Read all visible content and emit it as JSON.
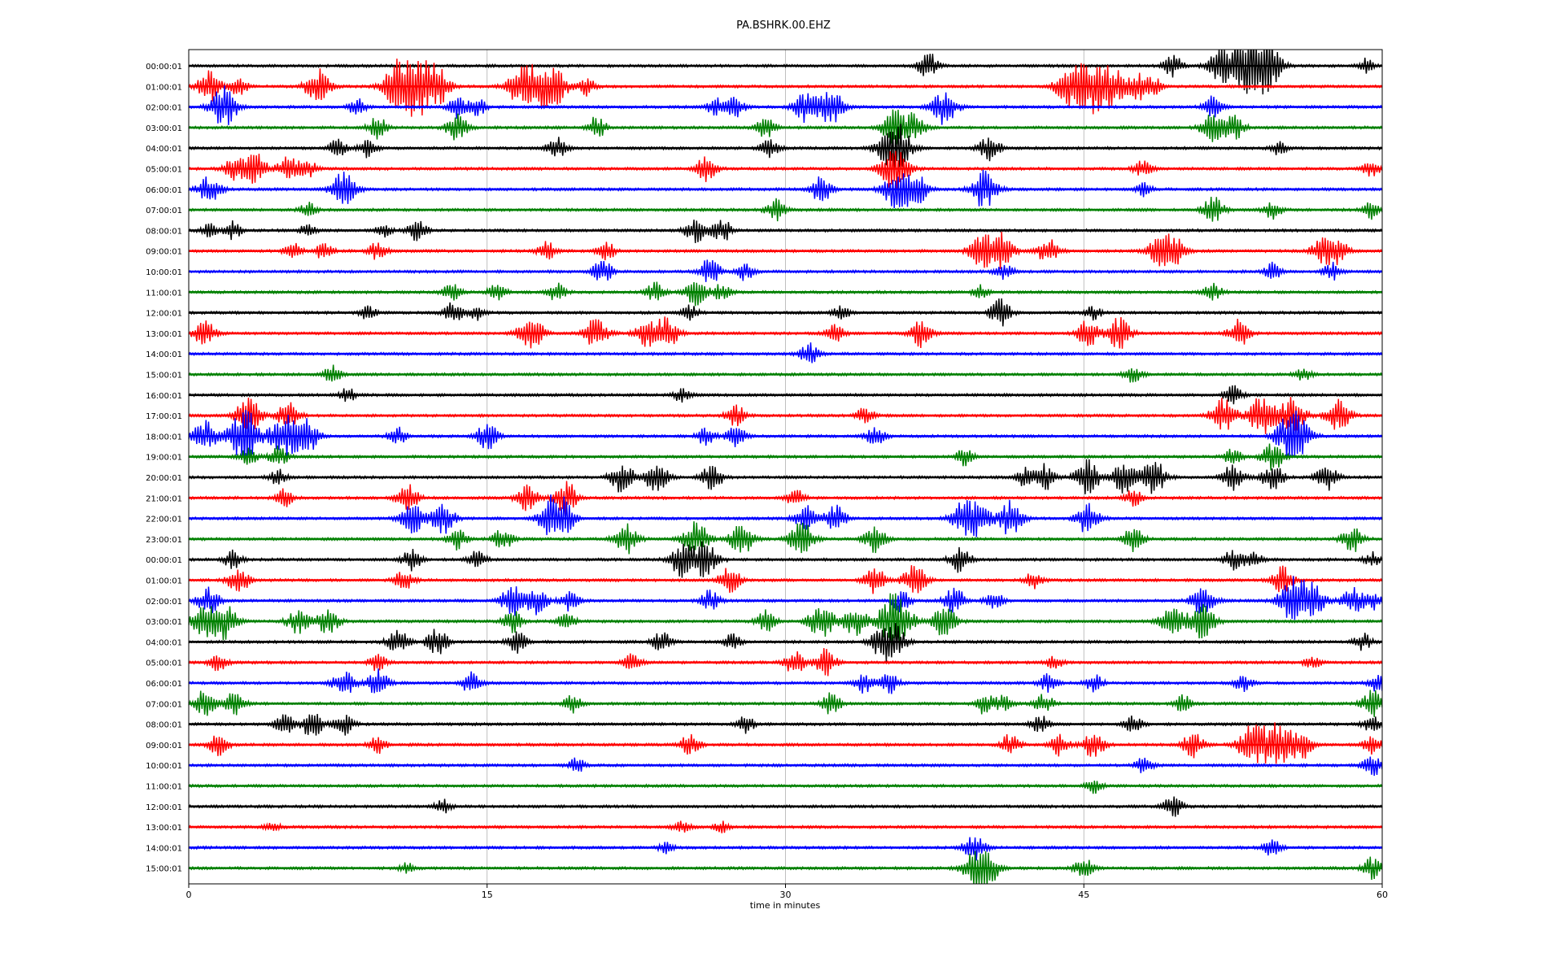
{
  "chart_data": {
    "type": "line",
    "title": "PA.BSHRK.00.EHZ",
    "xlabel": "time in minutes",
    "ylabel": "",
    "xlim": [
      0,
      60
    ],
    "xticks": [
      "0",
      "15",
      "30",
      "45",
      "60"
    ],
    "grid": "vertical",
    "trace_colors": [
      "#000000",
      "#ff0000",
      "#0000ff",
      "#008000"
    ],
    "row_labels": [
      "00:00:01",
      "01:00:01",
      "02:00:01",
      "03:00:01",
      "04:00:01",
      "05:00:01",
      "06:00:01",
      "07:00:01",
      "08:00:01",
      "09:00:01",
      "10:00:01",
      "11:00:01",
      "12:00:01",
      "13:00:01",
      "14:00:01",
      "15:00:01",
      "16:00:01",
      "17:00:01",
      "18:00:01",
      "19:00:01",
      "20:00:01",
      "21:00:01",
      "22:00:01",
      "23:00:01",
      "00:00:01",
      "01:00:01",
      "02:00:01",
      "03:00:01",
      "04:00:01",
      "05:00:01",
      "06:00:01",
      "07:00:01",
      "08:00:01",
      "09:00:01",
      "10:00:01",
      "11:00:01",
      "12:00:01",
      "13:00:01",
      "14:00:01",
      "15:00:01"
    ],
    "events": [
      [
        [
          37.2,
          1.5
        ],
        [
          49.5,
          1.2
        ],
        [
          51.8,
          1.8
        ],
        [
          52.8,
          2.0
        ],
        [
          53.6,
          2.2
        ],
        [
          54.2,
          2.5
        ],
        [
          59.2,
          0.8
        ]
      ],
      [
        [
          1.0,
          1.8
        ],
        [
          2.5,
          1.0
        ],
        [
          6.5,
          2.0
        ],
        [
          10.5,
          2.5
        ],
        [
          11.5,
          3.0
        ],
        [
          12.5,
          2.0
        ],
        [
          16.5,
          1.8
        ],
        [
          17.5,
          2.5
        ],
        [
          18.5,
          1.8
        ],
        [
          20.0,
          1.0
        ],
        [
          44.0,
          1.5
        ],
        [
          44.8,
          2.0
        ],
        [
          45.5,
          2.5
        ],
        [
          46.5,
          2.0
        ],
        [
          47.8,
          1.5
        ],
        [
          48.5,
          1.0
        ]
      ],
      [
        [
          1.5,
          1.5
        ],
        [
          2.0,
          1.5
        ],
        [
          8.5,
          1.0
        ],
        [
          13.5,
          1.2
        ],
        [
          14.5,
          1.0
        ],
        [
          26.5,
          1.0
        ],
        [
          27.5,
          1.2
        ],
        [
          31.0,
          1.8
        ],
        [
          32.3,
          2.0
        ],
        [
          38.0,
          2.0
        ],
        [
          51.5,
          1.2
        ]
      ],
      [
        [
          9.5,
          1.2
        ],
        [
          13.5,
          1.5
        ],
        [
          20.5,
          1.2
        ],
        [
          29.0,
          1.2
        ],
        [
          35.5,
          2.0
        ],
        [
          36.5,
          1.5
        ],
        [
          51.5,
          1.8
        ],
        [
          52.5,
          1.5
        ]
      ],
      [
        [
          7.5,
          1.0
        ],
        [
          9.0,
          1.0
        ],
        [
          18.5,
          1.2
        ],
        [
          29.2,
          1.2
        ],
        [
          35.5,
          3.0
        ],
        [
          40.3,
          1.5
        ],
        [
          54.8,
          0.8
        ]
      ],
      [
        [
          2.2,
          1.2
        ],
        [
          3.0,
          1.3
        ],
        [
          3.5,
          1.2
        ],
        [
          5.0,
          1.5
        ],
        [
          6.0,
          1.0
        ],
        [
          26.0,
          1.5
        ],
        [
          35.5,
          2.5
        ],
        [
          48.0,
          1.0
        ],
        [
          59.5,
          1.0
        ]
      ],
      [
        [
          0.8,
          1.0
        ],
        [
          1.3,
          1.0
        ],
        [
          7.8,
          2.0
        ],
        [
          31.8,
          1.5
        ],
        [
          35.5,
          2.0
        ],
        [
          36.5,
          2.0
        ],
        [
          40.0,
          2.2
        ],
        [
          48.0,
          0.8
        ]
      ],
      [
        [
          6.0,
          0.8
        ],
        [
          29.5,
          1.2
        ],
        [
          51.5,
          1.5
        ],
        [
          54.5,
          1.0
        ],
        [
          59.5,
          1.0
        ]
      ],
      [
        [
          1.0,
          0.8
        ],
        [
          2.2,
          1.0
        ],
        [
          6.0,
          0.8
        ],
        [
          9.8,
          0.8
        ],
        [
          11.5,
          1.2
        ],
        [
          25.5,
          1.5
        ],
        [
          26.8,
          1.3
        ]
      ],
      [
        [
          5.2,
          1.0
        ],
        [
          6.8,
          1.0
        ],
        [
          9.5,
          1.0
        ],
        [
          18.0,
          1.0
        ],
        [
          21.0,
          1.0
        ],
        [
          39.8,
          1.8
        ],
        [
          40.8,
          2.0
        ],
        [
          43.2,
          1.5
        ],
        [
          48.7,
          1.5
        ],
        [
          49.5,
          1.8
        ],
        [
          57.0,
          1.5
        ],
        [
          57.8,
          1.3
        ]
      ],
      [
        [
          20.8,
          1.3
        ],
        [
          26.2,
          1.5
        ],
        [
          28.0,
          1.0
        ],
        [
          41.0,
          1.0
        ],
        [
          54.5,
          1.0
        ],
        [
          57.5,
          1.0
        ]
      ],
      [
        [
          13.2,
          1.0
        ],
        [
          15.5,
          1.0
        ],
        [
          18.5,
          1.0
        ],
        [
          23.5,
          1.2
        ],
        [
          25.5,
          1.5
        ],
        [
          26.8,
          1.0
        ],
        [
          39.8,
          0.8
        ],
        [
          51.5,
          1.0
        ]
      ],
      [
        [
          9.0,
          0.8
        ],
        [
          13.3,
          1.2
        ],
        [
          14.5,
          0.8
        ],
        [
          25.2,
          0.8
        ],
        [
          32.8,
          0.8
        ],
        [
          40.8,
          1.5
        ],
        [
          45.5,
          0.8
        ]
      ],
      [
        [
          0.8,
          1.5
        ],
        [
          17.0,
          1.5
        ],
        [
          17.5,
          1.0
        ],
        [
          20.5,
          1.8
        ],
        [
          23.0,
          1.5
        ],
        [
          24.0,
          1.8
        ],
        [
          32.5,
          1.0
        ],
        [
          36.8,
          1.5
        ],
        [
          45.2,
          1.5
        ],
        [
          46.8,
          1.8
        ],
        [
          52.8,
          1.5
        ]
      ],
      [
        [
          31.2,
          1.2
        ]
      ],
      [
        [
          7.2,
          1.0
        ],
        [
          47.5,
          1.0
        ],
        [
          56.0,
          0.8
        ]
      ],
      [
        [
          8.0,
          0.8
        ],
        [
          24.8,
          0.8
        ],
        [
          52.5,
          1.0
        ]
      ],
      [
        [
          3.0,
          2.0
        ],
        [
          5.0,
          1.5
        ],
        [
          27.5,
          1.2
        ],
        [
          34.0,
          1.0
        ],
        [
          52.0,
          2.0
        ],
        [
          54.0,
          2.5
        ],
        [
          55.5,
          2.0
        ],
        [
          57.8,
          1.8
        ]
      ],
      [
        [
          0.8,
          1.8
        ],
        [
          2.8,
          3.0
        ],
        [
          4.8,
          2.5
        ],
        [
          6.0,
          1.8
        ],
        [
          10.5,
          1.0
        ],
        [
          15.0,
          1.5
        ],
        [
          26.0,
          1.0
        ],
        [
          27.5,
          1.2
        ],
        [
          34.5,
          1.2
        ],
        [
          55.5,
          3.0
        ]
      ],
      [
        [
          3.0,
          1.0
        ],
        [
          4.5,
          1.2
        ],
        [
          39.0,
          1.0
        ],
        [
          52.5,
          1.0
        ],
        [
          54.5,
          1.5
        ]
      ],
      [
        [
          4.5,
          1.0
        ],
        [
          21.8,
          1.8
        ],
        [
          23.5,
          1.8
        ],
        [
          26.3,
          1.5
        ],
        [
          42.0,
          1.0
        ],
        [
          43.0,
          1.5
        ],
        [
          45.2,
          2.0
        ],
        [
          47.0,
          1.8
        ],
        [
          48.5,
          2.0
        ],
        [
          52.5,
          1.5
        ],
        [
          54.5,
          1.5
        ],
        [
          57.2,
          1.5
        ]
      ],
      [
        [
          4.8,
          1.0
        ],
        [
          11.0,
          1.5
        ],
        [
          17.0,
          1.5
        ],
        [
          18.8,
          1.3
        ],
        [
          19.2,
          1.0
        ],
        [
          30.5,
          1.0
        ],
        [
          47.5,
          1.0
        ]
      ],
      [
        [
          11.2,
          1.8
        ],
        [
          12.8,
          1.8
        ],
        [
          18.2,
          2.0
        ],
        [
          18.8,
          1.8
        ],
        [
          31.0,
          1.5
        ],
        [
          32.5,
          1.5
        ],
        [
          39.0,
          2.0
        ],
        [
          39.8,
          1.5
        ],
        [
          41.3,
          2.0
        ],
        [
          45.2,
          1.8
        ]
      ],
      [
        [
          13.5,
          1.2
        ],
        [
          15.8,
          1.2
        ],
        [
          22.0,
          1.8
        ],
        [
          25.5,
          2.0
        ],
        [
          27.8,
          1.8
        ],
        [
          30.8,
          2.0
        ],
        [
          34.5,
          1.5
        ],
        [
          47.5,
          1.5
        ],
        [
          58.5,
          1.5
        ]
      ],
      [
        [
          2.2,
          1.0
        ],
        [
          11.2,
          1.2
        ],
        [
          14.5,
          1.0
        ],
        [
          24.8,
          2.0
        ],
        [
          26.0,
          2.0
        ],
        [
          38.8,
          1.5
        ],
        [
          52.5,
          1.2
        ],
        [
          53.5,
          1.0
        ],
        [
          59.5,
          0.8
        ]
      ],
      [
        [
          2.5,
          1.5
        ],
        [
          10.8,
          1.2
        ],
        [
          27.2,
          1.5
        ],
        [
          34.5,
          1.5
        ],
        [
          36.5,
          1.8
        ],
        [
          42.5,
          1.0
        ],
        [
          55.0,
          1.5
        ]
      ],
      [
        [
          1.0,
          1.5
        ],
        [
          16.3,
          1.8
        ],
        [
          17.5,
          1.5
        ],
        [
          19.2,
          1.3
        ],
        [
          26.2,
          1.2
        ],
        [
          35.8,
          1.2
        ],
        [
          38.5,
          1.5
        ],
        [
          40.5,
          1.0
        ],
        [
          51.0,
          1.8
        ],
        [
          55.5,
          2.5
        ],
        [
          56.5,
          2.0
        ],
        [
          58.5,
          1.5
        ],
        [
          59.5,
          1.0
        ]
      ],
      [
        [
          0.8,
          2.0
        ],
        [
          1.8,
          2.0
        ],
        [
          5.5,
          1.5
        ],
        [
          7.0,
          1.5
        ],
        [
          16.3,
          1.2
        ],
        [
          19.0,
          1.0
        ],
        [
          29.0,
          1.2
        ],
        [
          31.8,
          2.0
        ],
        [
          33.5,
          1.8
        ],
        [
          35.2,
          2.0
        ],
        [
          35.8,
          2.2
        ],
        [
          38.0,
          1.8
        ],
        [
          49.5,
          2.0
        ],
        [
          51.0,
          2.0
        ]
      ],
      [
        [
          10.5,
          1.5
        ],
        [
          12.5,
          1.5
        ],
        [
          16.5,
          1.2
        ],
        [
          23.8,
          1.2
        ],
        [
          27.3,
          1.0
        ],
        [
          34.8,
          1.5
        ],
        [
          35.5,
          1.8
        ],
        [
          59.0,
          1.0
        ]
      ],
      [
        [
          1.5,
          1.0
        ],
        [
          9.5,
          1.0
        ],
        [
          22.3,
          1.0
        ],
        [
          30.5,
          1.5
        ],
        [
          32.0,
          1.5
        ],
        [
          43.5,
          0.8
        ],
        [
          56.5,
          0.8
        ]
      ],
      [
        [
          7.8,
          1.5
        ],
        [
          9.5,
          1.5
        ],
        [
          14.2,
          1.2
        ],
        [
          34.0,
          1.2
        ],
        [
          35.2,
          1.2
        ],
        [
          43.2,
          1.0
        ],
        [
          45.5,
          1.0
        ],
        [
          53.0,
          1.0
        ],
        [
          59.8,
          1.0
        ]
      ],
      [
        [
          0.8,
          1.5
        ],
        [
          2.3,
          1.3
        ],
        [
          19.3,
          1.0
        ],
        [
          32.3,
          1.2
        ],
        [
          40.0,
          1.2
        ],
        [
          41.0,
          1.0
        ],
        [
          43.0,
          1.2
        ],
        [
          50.0,
          1.0
        ],
        [
          59.5,
          1.5
        ]
      ],
      [
        [
          4.8,
          1.2
        ],
        [
          6.2,
          1.5
        ],
        [
          7.8,
          1.2
        ],
        [
          28.0,
          1.0
        ],
        [
          42.8,
          1.0
        ],
        [
          47.5,
          1.0
        ],
        [
          59.5,
          1.0
        ]
      ],
      [
        [
          1.5,
          1.2
        ],
        [
          9.5,
          1.0
        ],
        [
          25.2,
          1.2
        ],
        [
          41.3,
          1.2
        ],
        [
          43.8,
          1.2
        ],
        [
          45.5,
          1.5
        ],
        [
          50.5,
          1.5
        ],
        [
          53.5,
          2.5
        ],
        [
          54.8,
          2.5
        ],
        [
          56.0,
          1.5
        ],
        [
          59.5,
          1.0
        ]
      ],
      [
        [
          19.5,
          0.8
        ],
        [
          48.0,
          1.0
        ],
        [
          59.5,
          1.2
        ]
      ],
      [
        [
          45.5,
          0.8
        ]
      ],
      [
        [
          12.8,
          0.8
        ],
        [
          49.5,
          1.2
        ]
      ],
      [
        [
          4.2,
          0.6
        ],
        [
          24.8,
          0.8
        ],
        [
          26.8,
          0.6
        ]
      ],
      [
        [
          24.0,
          0.6
        ],
        [
          39.5,
          1.5
        ],
        [
          54.5,
          1.0
        ]
      ],
      [
        [
          11.0,
          0.6
        ],
        [
          39.5,
          2.0
        ],
        [
          40.3,
          1.5
        ],
        [
          45.0,
          1.2
        ],
        [
          59.5,
          1.2
        ]
      ]
    ]
  }
}
